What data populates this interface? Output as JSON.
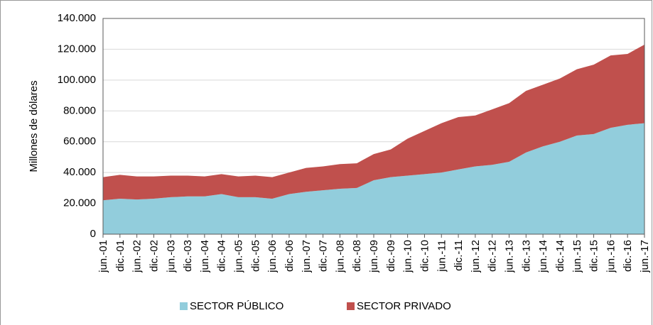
{
  "chart_data": {
    "type": "stacked-area",
    "y_label": "Millones de dólares",
    "categories": [
      "jun.-01",
      "dic.-01",
      "jun.-02",
      "dic.-02",
      "jun.-03",
      "dic.-03",
      "jun.-04",
      "dic.-04",
      "jun.-05",
      "dic.-05",
      "jun.-06",
      "dic.-06",
      "jun.-07",
      "dic.-07",
      "jun.-08",
      "dic.-08",
      "jun.-09",
      "dic.-09",
      "jun.-10",
      "dic.-10",
      "jun.-11",
      "dic.-11",
      "jun.-12",
      "dic.-12",
      "jun.-13",
      "dic.-13",
      "jun.-14",
      "dic.-14",
      "jun.-15",
      "dic.-15",
      "jun.-16",
      "dic.-16",
      "jun.-17"
    ],
    "series": [
      {
        "name": "SECTOR PÚBLICO",
        "color": "#92cddc",
        "values": [
          22000,
          23000,
          22500,
          23000,
          24000,
          24500,
          24500,
          26000,
          24000,
          24000,
          23000,
          26000,
          27500,
          28500,
          29500,
          30000,
          35000,
          37000,
          38000,
          39000,
          40000,
          42000,
          44000,
          45000,
          47000,
          53000,
          57000,
          60000,
          64000,
          65000,
          69000,
          71000,
          72000
        ]
      },
      {
        "name": "SECTOR PRIVADO",
        "color": "#c0504d",
        "values": [
          15000,
          15500,
          15000,
          14500,
          14000,
          13500,
          13000,
          13000,
          13500,
          14000,
          14000,
          14000,
          15500,
          15500,
          16000,
          16000,
          17000,
          18000,
          24000,
          28000,
          32000,
          34000,
          33000,
          36000,
          38000,
          40000,
          40000,
          41000,
          43000,
          45000,
          47000,
          46000,
          51000
        ]
      }
    ],
    "ylim": [
      0,
      140000
    ],
    "yticks": [
      0,
      {
        "value": 20000,
        "label": "20.000"
      },
      {
        "value": 40000,
        "label": "40.000"
      },
      {
        "value": 60000,
        "label": "60.000"
      },
      {
        "value": 80000,
        "label": "80.000"
      },
      {
        "value": 100000,
        "label": "100.000"
      },
      {
        "value": 120000,
        "label": "120.000"
      },
      {
        "value": 140000,
        "label": "140.000"
      }
    ],
    "grid": true
  }
}
